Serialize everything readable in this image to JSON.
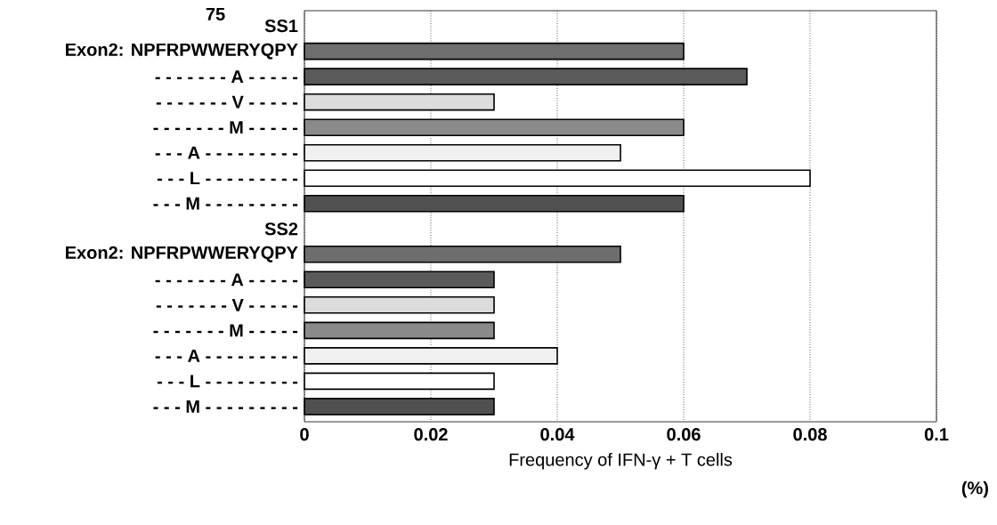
{
  "chart_data": {
    "type": "bar",
    "orientation": "horizontal",
    "xlabel": "Frequency of IFN-γ + T cells",
    "categories": [
      "SS1",
      "Exon2: NPFRPWWERYQPY",
      "- - - - - - - A - - - - -",
      "- - - - - - - V - - - - -",
      "- - - - - - - M - - - - -",
      "- - - A - - - - - - - - -",
      "- - - L - - - - - - - - -",
      "- - - M - - - - - - - - -",
      "SS2",
      "Exon2: NPFRPWWERYQPY",
      "- - - - - - - A - - - - -",
      "- - - - - - - V - - - - -",
      "- - - - - - - M - - - - -",
      "- - - A - - - - - - - - -",
      "- - - L - - - - - - - - -",
      "- - - M - - - - - - - - -"
    ],
    "values": [
      null,
      0.06,
      0.07,
      0.03,
      0.06,
      0.05,
      0.08,
      0.06,
      null,
      0.05,
      0.03,
      0.03,
      0.03,
      0.04,
      0.03,
      0.03
    ],
    "colors": [
      "#ffffff",
      "#6e6e6e",
      "#5a5a5a",
      "#dcdcdc",
      "#8a8a8a",
      "#f0f0f0",
      "#ffffff",
      "#505050",
      "#ffffff",
      "#6e6e6e",
      "#5a5a5a",
      "#dcdcdc",
      "#8a8a8a",
      "#f0f0f0",
      "#ffffff",
      "#505050"
    ],
    "xlim": [
      0,
      0.1
    ],
    "xticks": [
      0,
      0.02,
      0.04,
      0.06,
      0.08,
      0.1
    ],
    "grid": "x",
    "annotations": [
      "75",
      "(%)"
    ]
  }
}
